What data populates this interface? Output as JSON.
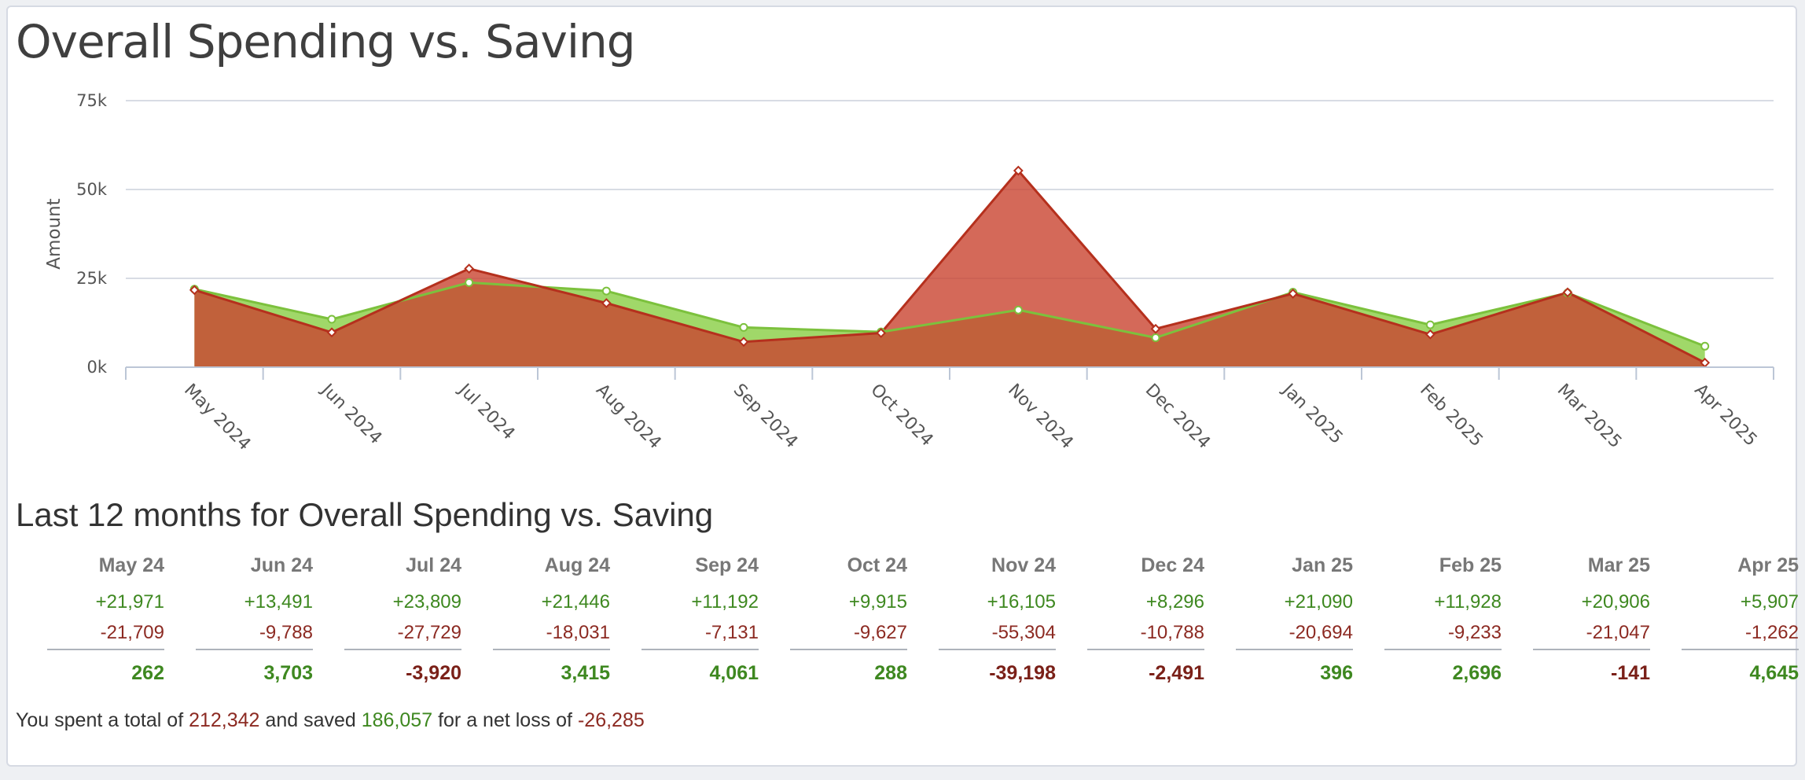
{
  "title": "Overall Spending vs. Saving",
  "chart_data": {
    "type": "area",
    "title": "Overall Spending vs. Saving",
    "ylabel": "Amount",
    "xlabel": "",
    "ylim": [
      0,
      75000
    ],
    "yticks": [
      0,
      25000,
      50000,
      75000
    ],
    "ytick_labels": [
      "0k",
      "25k",
      "50k",
      "75k"
    ],
    "grid": true,
    "categories": [
      "May 2024",
      "Jun 2024",
      "Jul 2024",
      "Aug 2024",
      "Sep 2024",
      "Oct 2024",
      "Nov 2024",
      "Dec 2024",
      "Jan 2025",
      "Feb 2025",
      "Mar 2025",
      "Apr 2025"
    ],
    "series": [
      {
        "name": "Saving",
        "color": "#8fd14f",
        "values": [
          21971,
          13491,
          23809,
          21446,
          11192,
          9915,
          16105,
          8296,
          21090,
          11928,
          20906,
          5907
        ]
      },
      {
        "name": "Spending",
        "color": "#c9432f",
        "values": [
          21709,
          9788,
          27729,
          18031,
          7131,
          9627,
          55304,
          10788,
          20694,
          9233,
          21047,
          1262
        ]
      }
    ]
  },
  "summary": {
    "heading": "Last 12 months for Overall Spending vs. Saving",
    "months": [
      "May 24",
      "Jun 24",
      "Jul 24",
      "Aug 24",
      "Sep 24",
      "Oct 24",
      "Nov 24",
      "Dec 24",
      "Jan 25",
      "Feb 25",
      "Mar 25",
      "Apr 25"
    ],
    "saved": [
      "+21,971",
      "+13,491",
      "+23,809",
      "+21,446",
      "+11,192",
      "+9,915",
      "+16,105",
      "+8,296",
      "+21,090",
      "+11,928",
      "+20,906",
      "+5,907"
    ],
    "spent": [
      "-21,709",
      "-9,788",
      "-27,729",
      "-18,031",
      "-7,131",
      "-9,627",
      "-55,304",
      "-10,788",
      "-20,694",
      "-9,233",
      "-21,047",
      "-1,262"
    ],
    "net": [
      "262",
      "3,703",
      "-3,920",
      "3,415",
      "4,061",
      "288",
      "-39,198",
      "-2,491",
      "396",
      "2,696",
      "-141",
      "4,645"
    ]
  },
  "footer": {
    "prefix": "You spent a total of",
    "spent_total": "212,342",
    "mid": "and saved",
    "saved_total": "186,057",
    "mid2": "for a net loss of",
    "net_total": "-26,285"
  },
  "colors": {
    "saving_fill": "#8fd14f",
    "saving_line": "#7cc13d",
    "spending_fill": "#c9432f",
    "spending_line": "#b5301d",
    "positive_text": "#3e8820",
    "negative_text": "#7a2018"
  }
}
